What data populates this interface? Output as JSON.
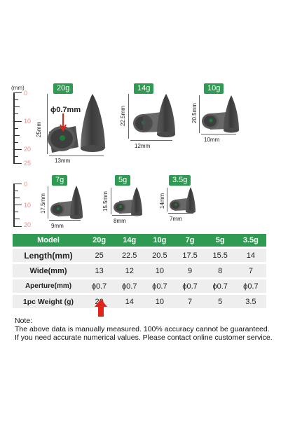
{
  "top_ruler": {
    "unit": "(mm)",
    "ticks": [
      "0",
      "10",
      "20",
      "25"
    ]
  },
  "bottom_ruler": {
    "ticks": [
      "0",
      "10",
      "20"
    ]
  },
  "weights": {
    "w20": {
      "badge": "20g",
      "length": "25mm",
      "width": "13mm",
      "aperture": "ϕ0.7mm"
    },
    "w14": {
      "badge": "14g",
      "length": "22.5mm",
      "width": "12mm"
    },
    "w10": {
      "badge": "10g",
      "length": "20.5mm",
      "width": "10mm"
    },
    "w7": {
      "badge": "7g",
      "length": "17.5mm",
      "width": "9mm"
    },
    "w5": {
      "badge": "5g",
      "length": "15.5mm",
      "width": "8mm"
    },
    "w35": {
      "badge": "3.5g",
      "length": "14mm",
      "width": "7mm"
    }
  },
  "table": {
    "header": [
      "Model",
      "20g",
      "14g",
      "10g",
      "7g",
      "5g",
      "3.5g"
    ],
    "rows": [
      [
        "Length(mm)",
        "25",
        "22.5",
        "20.5",
        "17.5",
        "15.5",
        "14"
      ],
      [
        "Wide(mm)",
        "13",
        "12",
        "10",
        "9",
        "8",
        "7"
      ],
      [
        "Aperture(mm)",
        "ϕ0.7",
        "ϕ0.7",
        "ϕ0.7",
        "ϕ0.7",
        "ϕ0.7",
        "ϕ0.7"
      ],
      [
        "1pc Weight (g)",
        "20",
        "14",
        "10",
        "7",
        "5",
        "3.5"
      ]
    ]
  },
  "note": {
    "title": "Note:",
    "line1": "The above data is manually measured. 100% accuracy cannot be guaranteed.",
    "line2": "If you need accurate numerical values. Please contact online customer service."
  },
  "colors": {
    "accent": "#2e9a52",
    "arrow": "#e2231a",
    "ruler_numbers": "#f08a84"
  }
}
